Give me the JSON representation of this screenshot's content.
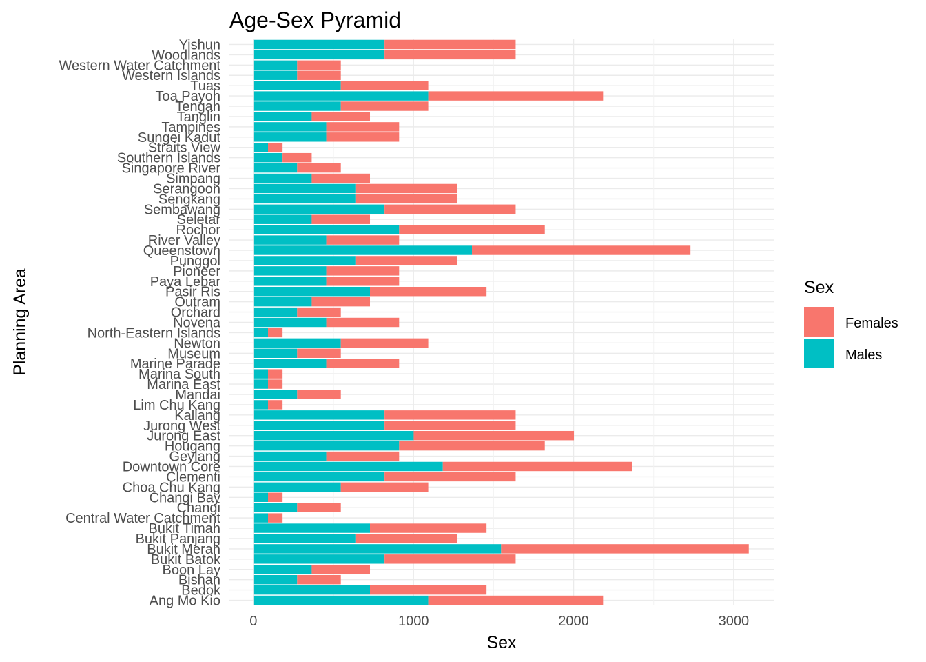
{
  "chart_data": {
    "type": "bar",
    "orientation": "horizontal",
    "stacked": true,
    "title": "Age-Sex Pyramid",
    "xlabel": "Sex",
    "ylabel": "Planning Area",
    "xlim": [
      -150,
      3250
    ],
    "xticks": [
      0,
      1000,
      2000,
      3000
    ],
    "xtick_labels": [
      "0",
      "1000",
      "2000",
      "3000"
    ],
    "grid": true,
    "legend": {
      "title": "Sex",
      "position": "right"
    },
    "categories": [
      "Ang Mo Kio",
      "Bedok",
      "Bishan",
      "Boon Lay",
      "Bukit Batok",
      "Bukit Merah",
      "Bukit Panjang",
      "Bukit Timah",
      "Central Water Catchment",
      "Changi",
      "Changi Bay",
      "Choa Chu Kang",
      "Clementi",
      "Downtown Core",
      "Geylang",
      "Hougang",
      "Jurong East",
      "Jurong West",
      "Kallang",
      "Lim Chu Kang",
      "Mandai",
      "Marina East",
      "Marina South",
      "Marine Parade",
      "Museum",
      "Newton",
      "North-Eastern Islands",
      "Novena",
      "Orchard",
      "Outram",
      "Pasir Ris",
      "Paya Lebar",
      "Pioneer",
      "Punggol",
      "Queenstown",
      "River Valley",
      "Rochor",
      "Seletar",
      "Sembawang",
      "Sengkang",
      "Serangoon",
      "Simpang",
      "Singapore River",
      "Southern Islands",
      "Straits View",
      "Sungei Kadut",
      "Tampines",
      "Tanglin",
      "Tengah",
      "Toa Payoh",
      "Tuas",
      "Western Islands",
      "Western Water Catchment",
      "Woodlands",
      "Yishun"
    ],
    "series": [
      {
        "name": "Males",
        "color": "#00BFC4",
        "values": [
          1092,
          728,
          273,
          364,
          819,
          1547,
          637,
          728,
          91,
          273,
          91,
          546,
          819,
          1183,
          455,
          910,
          1001,
          819,
          819,
          91,
          273,
          91,
          91,
          455,
          273,
          546,
          91,
          455,
          273,
          364,
          728,
          455,
          455,
          637,
          1365,
          455,
          910,
          364,
          819,
          637,
          637,
          364,
          273,
          182,
          91,
          455,
          455,
          364,
          546,
          1092,
          546,
          273,
          273,
          819,
          819
        ]
      },
      {
        "name": "Females",
        "color": "#F8766D",
        "values": [
          1092,
          728,
          273,
          364,
          819,
          1547,
          637,
          728,
          91,
          273,
          91,
          546,
          819,
          1183,
          455,
          910,
          1001,
          819,
          819,
          91,
          273,
          91,
          91,
          455,
          273,
          546,
          91,
          455,
          273,
          364,
          728,
          455,
          455,
          637,
          1365,
          455,
          910,
          364,
          819,
          637,
          637,
          364,
          273,
          182,
          91,
          455,
          455,
          364,
          546,
          1092,
          546,
          273,
          273,
          819,
          819
        ]
      }
    ]
  }
}
